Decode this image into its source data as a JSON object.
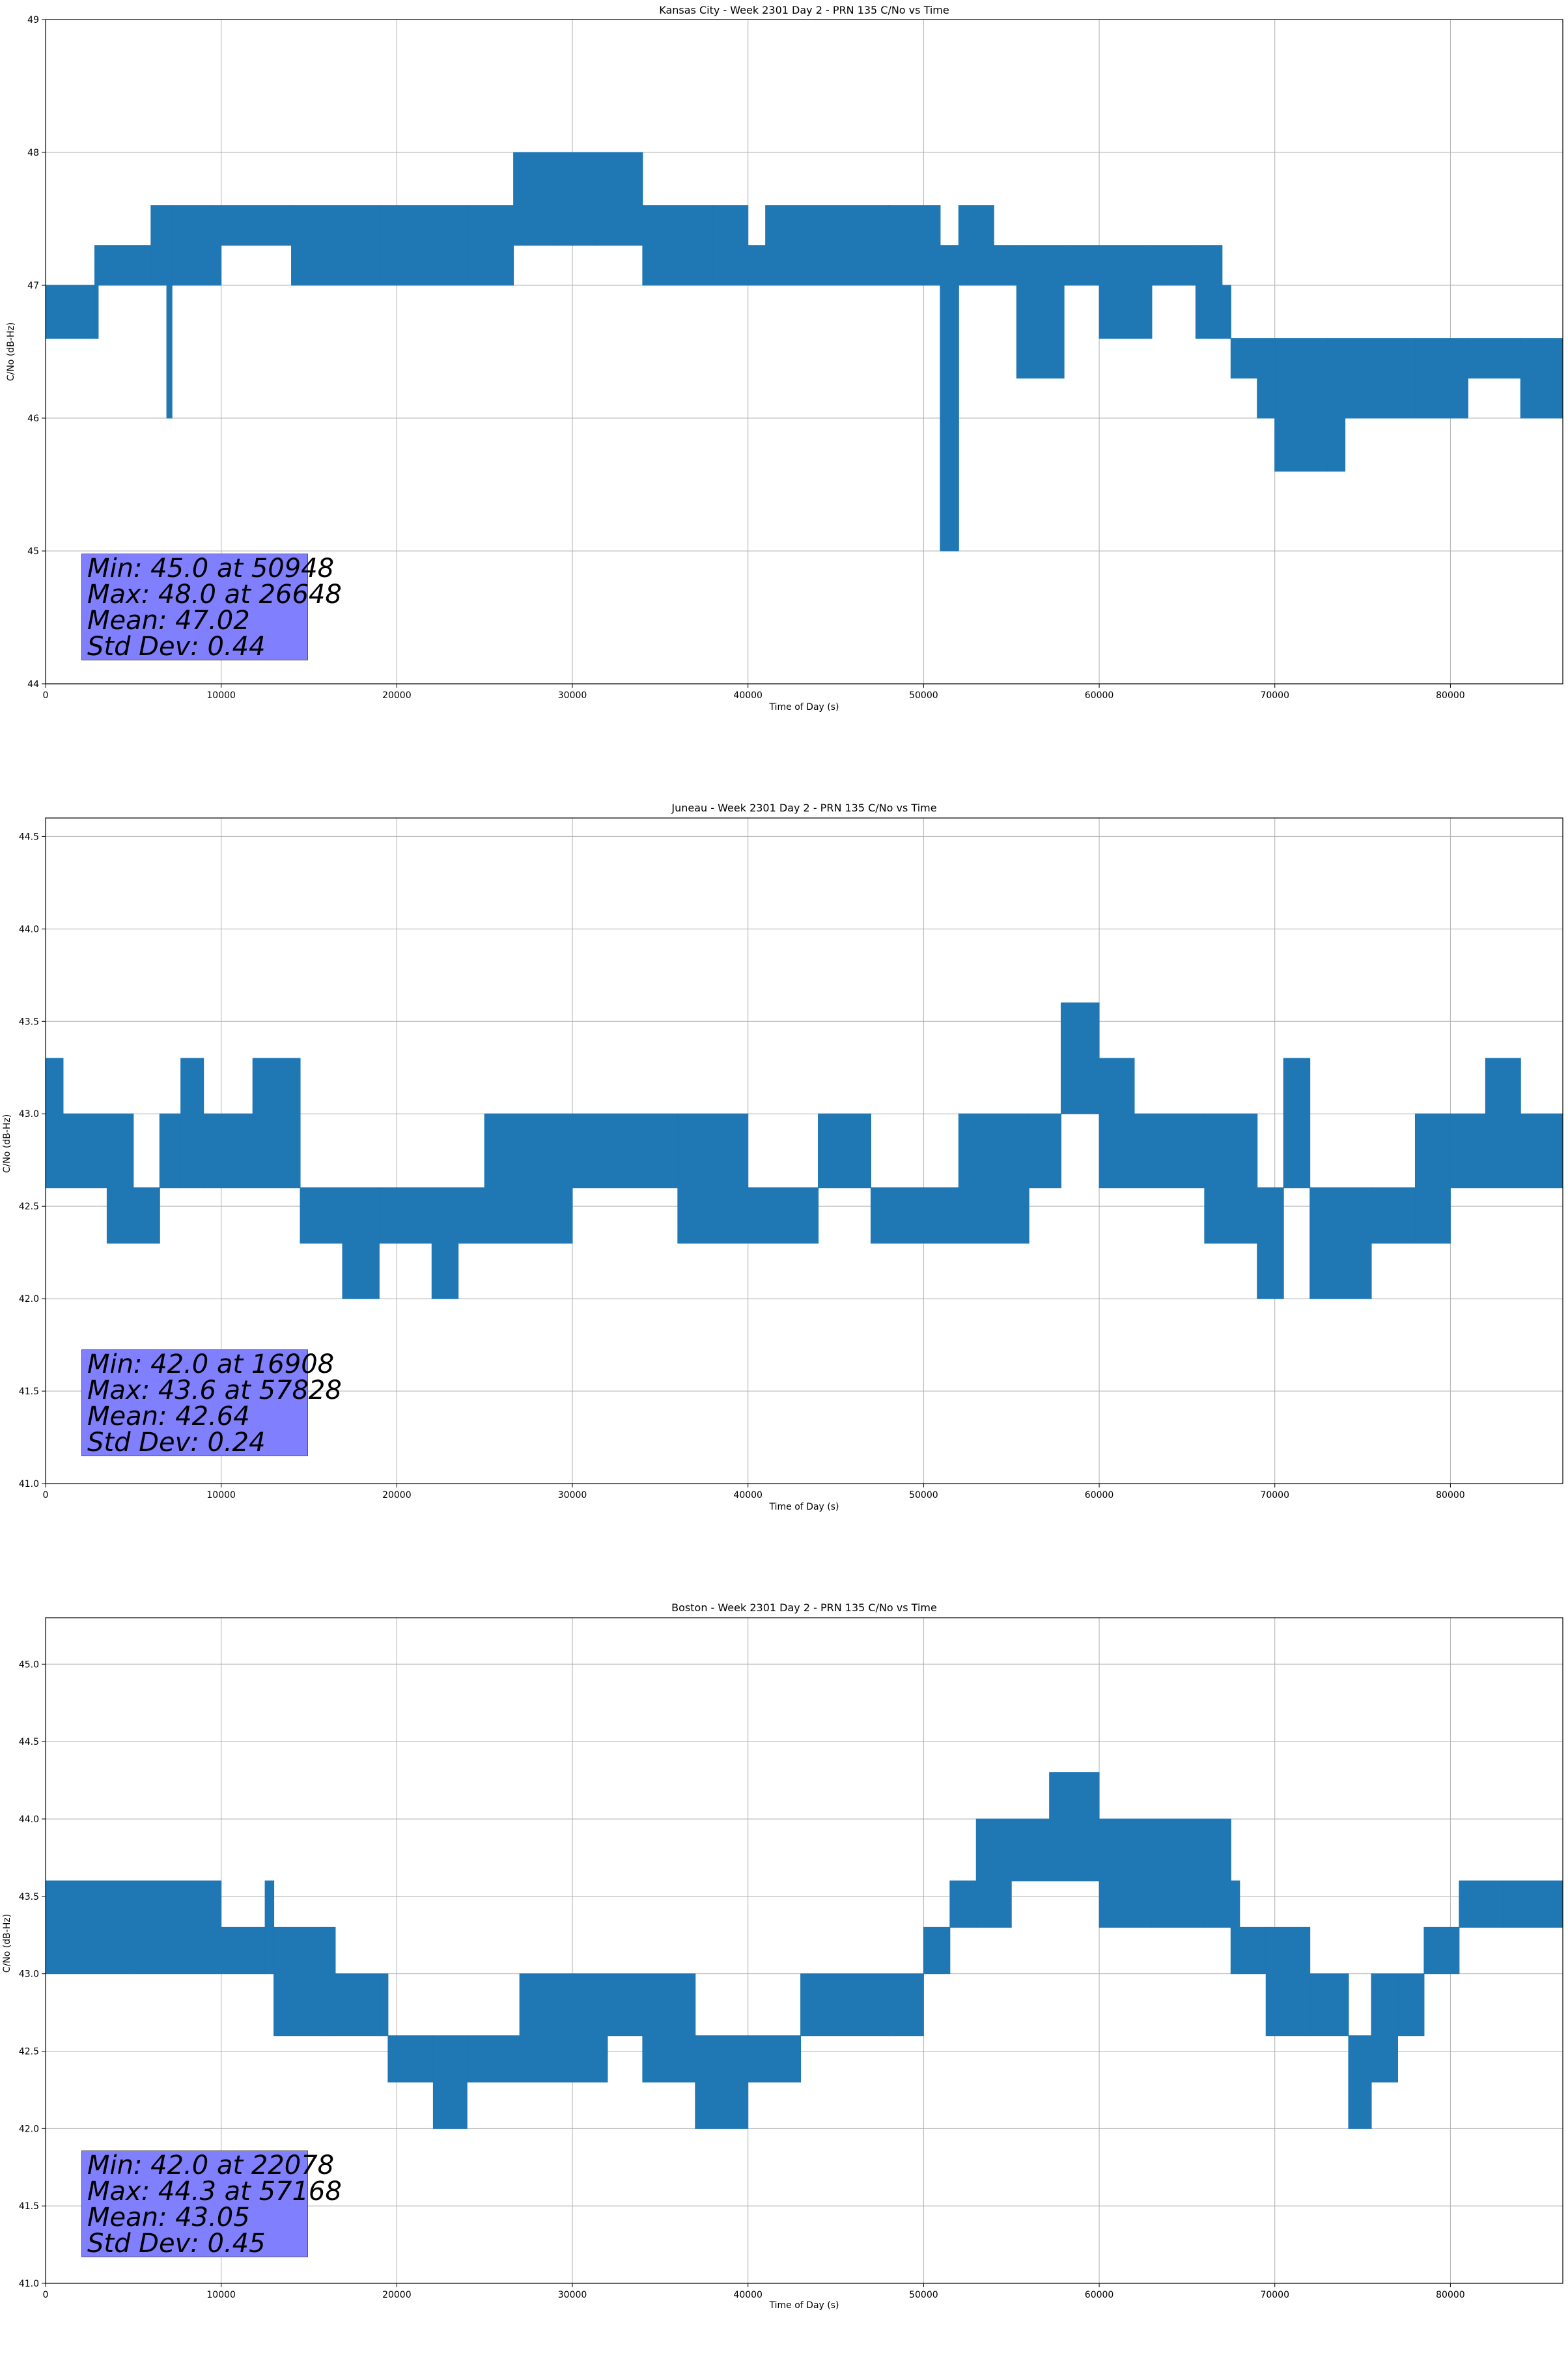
{
  "chart_data": [
    {
      "type": "line",
      "title": "Kansas City - Week 2301 Day 2 - PRN 135 C/No vs Time",
      "xlabel": "Time of Day (s)",
      "ylabel": "C/No (dB-Hz)",
      "xlim": [
        0,
        86400
      ],
      "ylim": [
        44,
        49
      ],
      "xticks": [
        0,
        10000,
        20000,
        30000,
        40000,
        50000,
        60000,
        70000,
        80000
      ],
      "yticks": [
        44,
        45,
        46,
        47,
        48,
        49
      ],
      "ytick_decimals": 0,
      "grid": true,
      "color": "#1f77b4",
      "series": [
        {
          "values": [
            [
              0,
              46.6,
              47.0
            ],
            [
              2800,
              46.6,
              47.3
            ],
            [
              3000,
              47.0,
              47.3
            ],
            [
              6000,
              47.0,
              47.6
            ],
            [
              6900,
              46.0,
              47.6
            ],
            [
              7200,
              47.0,
              47.6
            ],
            [
              9500,
              47.0,
              47.6
            ],
            [
              10000,
              47.3,
              47.6
            ],
            [
              14000,
              47.0,
              47.6
            ],
            [
              19000,
              47.0,
              47.6
            ],
            [
              24000,
              47.0,
              47.6
            ],
            [
              26648,
              47.3,
              48.0
            ],
            [
              29000,
              47.3,
              48.0
            ],
            [
              31300,
              47.3,
              48.0
            ],
            [
              34000,
              47.0,
              47.6
            ],
            [
              38000,
              47.0,
              47.6
            ],
            [
              40000,
              47.0,
              47.3
            ],
            [
              41000,
              47.0,
              47.6
            ],
            [
              44000,
              47.0,
              47.6
            ],
            [
              48000,
              47.0,
              47.6
            ],
            [
              50948,
              45.0,
              47.3
            ],
            [
              52000,
              47.0,
              47.6
            ],
            [
              54000,
              47.0,
              47.3
            ],
            [
              55300,
              46.3,
              47.3
            ],
            [
              58000,
              47.0,
              47.3
            ],
            [
              60000,
              46.6,
              47.3
            ],
            [
              63000,
              47.0,
              47.3
            ],
            [
              65500,
              46.6,
              47.3
            ],
            [
              67000,
              46.6,
              47.0
            ],
            [
              67500,
              46.3,
              46.6
            ],
            [
              69000,
              46.0,
              46.6
            ],
            [
              70000,
              45.6,
              46.6
            ],
            [
              73000,
              45.6,
              46.6
            ],
            [
              74000,
              46.0,
              46.6
            ],
            [
              78000,
              46.0,
              46.6
            ],
            [
              81000,
              46.3,
              46.6
            ],
            [
              84000,
              46.0,
              46.6
            ],
            [
              86400,
              46.3,
              46.6
            ]
          ]
        }
      ],
      "stats": {
        "min": "Min: 45.0 at 50948",
        "max": "Max: 48.0 at 26648",
        "mean": "Mean: 47.02",
        "std": "Std Dev: 0.44"
      }
    },
    {
      "type": "line",
      "title": "Juneau - Week 2301 Day 2 - PRN 135 C/No vs Time",
      "xlabel": "Time of Day (s)",
      "ylabel": "C/No (dB-Hz)",
      "xlim": [
        0,
        86400
      ],
      "ylim": [
        41.0,
        44.6
      ],
      "xticks": [
        0,
        10000,
        20000,
        30000,
        40000,
        50000,
        60000,
        70000,
        80000
      ],
      "yticks": [
        41.0,
        41.5,
        42.0,
        42.5,
        43.0,
        43.5,
        44.0,
        44.5
      ],
      "ytick_decimals": 1,
      "grid": true,
      "color": "#1f77b4",
      "series": [
        {
          "values": [
            [
              0,
              42.6,
              43.3
            ],
            [
              1000,
              42.6,
              43.0
            ],
            [
              3500,
              42.3,
              43.0
            ],
            [
              5000,
              42.3,
              42.6
            ],
            [
              6500,
              42.6,
              43.0
            ],
            [
              7700,
              42.6,
              43.3
            ],
            [
              9000,
              42.6,
              43.0
            ],
            [
              11800,
              42.6,
              43.3
            ],
            [
              14500,
              42.3,
              42.6
            ],
            [
              16908,
              42.0,
              42.6
            ],
            [
              19000,
              42.3,
              42.6
            ],
            [
              22000,
              42.0,
              42.6
            ],
            [
              23500,
              42.3,
              42.6
            ],
            [
              25000,
              42.3,
              43.0
            ],
            [
              30000,
              42.6,
              43.0
            ],
            [
              36000,
              42.3,
              43.0
            ],
            [
              40000,
              42.3,
              42.6
            ],
            [
              44000,
              42.6,
              43.0
            ],
            [
              47000,
              42.3,
              42.6
            ],
            [
              52000,
              42.3,
              43.0
            ],
            [
              56000,
              42.6,
              43.0
            ],
            [
              57828,
              43.0,
              43.6
            ],
            [
              60000,
              42.6,
              43.3
            ],
            [
              62000,
              42.6,
              43.0
            ],
            [
              66000,
              42.3,
              43.0
            ],
            [
              69000,
              42.0,
              42.6
            ],
            [
              70500,
              42.6,
              43.3
            ],
            [
              72000,
              42.0,
              42.6
            ],
            [
              75500,
              42.3,
              42.6
            ],
            [
              78000,
              42.3,
              43.0
            ],
            [
              80000,
              42.6,
              43.0
            ],
            [
              82000,
              42.6,
              43.3
            ],
            [
              84000,
              42.6,
              43.0
            ],
            [
              86400,
              42.3,
              42.6
            ]
          ]
        }
      ],
      "stats": {
        "min": "Min: 42.0 at 16908",
        "max": "Max: 43.6 at 57828",
        "mean": "Mean: 42.64",
        "std": "Std Dev: 0.24"
      }
    },
    {
      "type": "line",
      "title": "Boston - Week 2301 Day 2 - PRN 135 C/No vs Time",
      "xlabel": "Time of Day (s)",
      "ylabel": "C/No (dB-Hz)",
      "xlim": [
        0,
        86400
      ],
      "ylim": [
        41.0,
        45.3
      ],
      "xticks": [
        0,
        10000,
        20000,
        30000,
        40000,
        50000,
        60000,
        70000,
        80000
      ],
      "yticks": [
        41.0,
        41.5,
        42.0,
        42.5,
        43.0,
        43.5,
        44.0,
        44.5,
        45.0
      ],
      "ytick_decimals": 1,
      "grid": true,
      "color": "#1f77b4",
      "series": [
        {
          "values": [
            [
              0,
              43.0,
              43.6
            ],
            [
              5000,
              43.0,
              43.6
            ],
            [
              10000,
              43.0,
              43.3
            ],
            [
              12500,
              43.0,
              43.6
            ],
            [
              13000,
              42.6,
              43.3
            ],
            [
              16000,
              42.6,
              43.3
            ],
            [
              16500,
              42.6,
              43.0
            ],
            [
              19000,
              42.6,
              43.0
            ],
            [
              19500,
              42.3,
              42.6
            ],
            [
              22078,
              42.0,
              42.6
            ],
            [
              24000,
              42.3,
              42.6
            ],
            [
              27000,
              42.3,
              43.0
            ],
            [
              32000,
              42.6,
              43.0
            ],
            [
              34000,
              42.3,
              43.0
            ],
            [
              37000,
              42.0,
              42.6
            ],
            [
              40000,
              42.3,
              42.6
            ],
            [
              43000,
              42.6,
              43.0
            ],
            [
              48000,
              42.6,
              43.0
            ],
            [
              50000,
              43.0,
              43.3
            ],
            [
              51500,
              43.3,
              43.6
            ],
            [
              53000,
              43.3,
              44.0
            ],
            [
              55000,
              43.6,
              44.0
            ],
            [
              57168,
              43.6,
              44.3
            ],
            [
              60000,
              43.3,
              44.0
            ],
            [
              63000,
              43.3,
              44.0
            ],
            [
              66000,
              43.3,
              44.0
            ],
            [
              67500,
              43.0,
              43.6
            ],
            [
              68000,
              43.0,
              43.3
            ],
            [
              69500,
              42.6,
              43.3
            ],
            [
              72000,
              42.6,
              43.0
            ],
            [
              74200,
              42.0,
              42.6
            ],
            [
              75500,
              42.3,
              43.0
            ],
            [
              77000,
              42.6,
              43.0
            ],
            [
              78500,
              43.0,
              43.3
            ],
            [
              80500,
              43.3,
              43.6
            ],
            [
              83000,
              43.3,
              43.6
            ],
            [
              86400,
              43.3,
              43.6
            ]
          ]
        }
      ],
      "stats": {
        "min": "Min: 42.0 at 22078",
        "max": "Max: 44.3 at 57168",
        "mean": "Mean: 43.05",
        "std": "Std Dev: 0.45"
      }
    }
  ]
}
